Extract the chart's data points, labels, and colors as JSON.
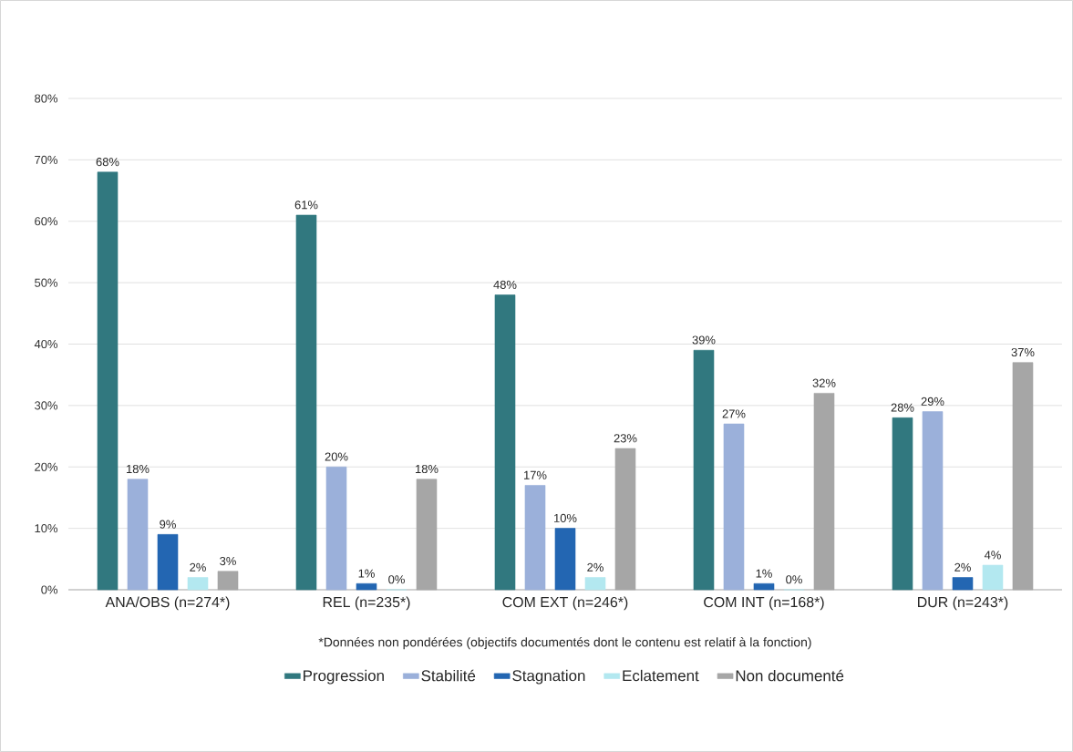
{
  "chart_data": {
    "type": "bar",
    "categories": [
      "ANA/OBS (n=274*)",
      "REL (n=235*)",
      "COM EXT (n=246*)",
      "COM INT (n=168*)",
      "DUR (n=243*)"
    ],
    "series": [
      {
        "name": "Progression",
        "color": "#31787f",
        "values": [
          68,
          61,
          48,
          39,
          28
        ],
        "value_labels": [
          "68%",
          "61%",
          "48%",
          "39%",
          "28%"
        ]
      },
      {
        "name": "Stabilité",
        "color": "#9bb0da",
        "values": [
          18,
          20,
          17,
          27,
          29
        ],
        "value_labels": [
          "18%",
          "20%",
          "17%",
          "27%",
          "29%"
        ]
      },
      {
        "name": "Stagnation",
        "color": "#2366b2",
        "values": [
          9,
          1,
          10,
          1,
          2
        ],
        "value_labels": [
          "9%",
          "1%",
          "10%",
          "1%",
          "2%"
        ]
      },
      {
        "name": "Eclatement",
        "color": "#b3e8f0",
        "values": [
          2,
          0,
          2,
          0,
          4
        ],
        "value_labels": [
          "2%",
          "0%",
          "2%",
          "0%",
          "4%"
        ]
      },
      {
        "name": "Non documenté",
        "color": "#a6a6a6",
        "values": [
          3,
          18,
          23,
          32,
          37
        ],
        "value_labels": [
          "3%",
          "18%",
          "23%",
          "32%",
          "37%"
        ]
      }
    ],
    "ylim": [
      0,
      80
    ],
    "yticks": [
      {
        "value": 0,
        "label": "0%"
      },
      {
        "value": 10,
        "label": "10%"
      },
      {
        "value": 20,
        "label": "20%"
      },
      {
        "value": 30,
        "label": "30%"
      },
      {
        "value": 40,
        "label": "40%"
      },
      {
        "value": 50,
        "label": "50%"
      },
      {
        "value": 60,
        "label": "60%"
      },
      {
        "value": 70,
        "label": "70%"
      },
      {
        "value": 80,
        "label": "80%"
      }
    ],
    "grid": "y",
    "legend": "bottom",
    "annotations": [
      "*Données non pondérées (objectifs documentés dont le contenu est relatif à la fonction)"
    ]
  }
}
